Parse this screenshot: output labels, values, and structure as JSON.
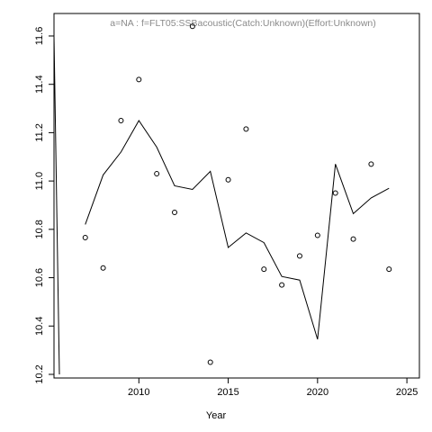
{
  "chart_data": {
    "type": "scatter-line",
    "title": "a=NA  :  f=FLT05:SSBacoustic(Catch:Unknown)(Effort:Unknown)",
    "x_label": "Year",
    "x": [
      2007,
      2008,
      2009,
      2010,
      2011,
      2012,
      2013,
      2014,
      2015,
      2016,
      2017,
      2018,
      2019,
      2020,
      2021,
      2022,
      2023,
      2024
    ],
    "series": [
      {
        "style": "points",
        "color": "#000000",
        "values": [
          10.766,
          10.64,
          11.25,
          11.42,
          11.03,
          10.87,
          11.64,
          10.25,
          11.005,
          11.215,
          10.635,
          10.57,
          10.69,
          10.775,
          10.95,
          10.76,
          11.07,
          10.635
        ]
      },
      {
        "style": "line",
        "color": "#000000",
        "values": [
          10.82,
          11.025,
          11.12,
          11.25,
          11.14,
          10.98,
          10.965,
          11.04,
          10.725,
          10.785,
          10.745,
          10.605,
          10.59,
          10.345,
          11.07,
          10.865,
          10.93,
          10.97
        ]
      }
    ],
    "xlim": [
      2005.25,
      2025.7
    ],
    "xticks": [
      2010,
      2015,
      2020,
      2025
    ],
    "ylim": [
      10.185,
      11.693
    ],
    "yticks": [
      10.2,
      10.4,
      10.6,
      10.8,
      {
        "value": 11,
        "label": "11.0"
      },
      11.2,
      11.4,
      11.6
    ],
    "grid": false
  }
}
